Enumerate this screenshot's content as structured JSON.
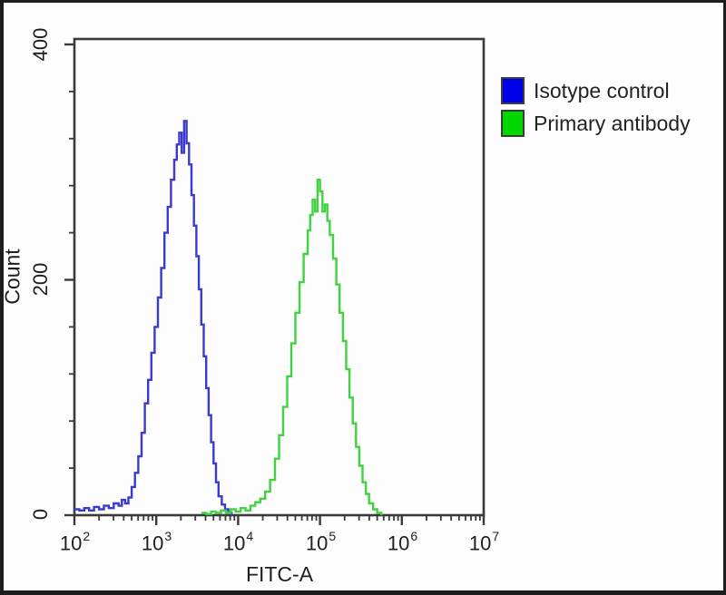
{
  "chart_data": {
    "type": "line",
    "subtype": "flow-cytometry-histogram",
    "title": "",
    "xlabel": "FITC-A",
    "ylabel": "Count",
    "x_scale": "log10",
    "xlim_log10": [
      2,
      7
    ],
    "ylim": [
      0,
      400
    ],
    "grid": false,
    "legend_position": "outside-top-right",
    "x_tick_base": "10",
    "x_tick_exponents": [
      "2",
      "3",
      "4",
      "5",
      "6",
      "7"
    ],
    "y_tick_labels": [
      "0",
      "200",
      "400"
    ],
    "y_tick_values": [
      0,
      200,
      400
    ],
    "y_minor_step": 40,
    "series": [
      {
        "name": "Isotype control",
        "color": "#3a3ad0",
        "peak_x_log10": 3.33,
        "peak_count": 335,
        "points_log10_count": [
          [
            2.0,
            5
          ],
          [
            2.06,
            4
          ],
          [
            2.12,
            6
          ],
          [
            2.18,
            4
          ],
          [
            2.24,
            7
          ],
          [
            2.3,
            5
          ],
          [
            2.36,
            8
          ],
          [
            2.42,
            6
          ],
          [
            2.48,
            10
          ],
          [
            2.54,
            8
          ],
          [
            2.58,
            13
          ],
          [
            2.62,
            10
          ],
          [
            2.66,
            15
          ],
          [
            2.7,
            24
          ],
          [
            2.74,
            36
          ],
          [
            2.78,
            50
          ],
          [
            2.82,
            70
          ],
          [
            2.86,
            95
          ],
          [
            2.9,
            115
          ],
          [
            2.94,
            138
          ],
          [
            2.98,
            160
          ],
          [
            3.02,
            185
          ],
          [
            3.06,
            210
          ],
          [
            3.1,
            240
          ],
          [
            3.14,
            262
          ],
          [
            3.18,
            285
          ],
          [
            3.22,
            302
          ],
          [
            3.25,
            315
          ],
          [
            3.28,
            325
          ],
          [
            3.31,
            308
          ],
          [
            3.34,
            335
          ],
          [
            3.37,
            316
          ],
          [
            3.4,
            298
          ],
          [
            3.43,
            272
          ],
          [
            3.46,
            246
          ],
          [
            3.49,
            220
          ],
          [
            3.52,
            192
          ],
          [
            3.55,
            162
          ],
          [
            3.58,
            135
          ],
          [
            3.61,
            108
          ],
          [
            3.64,
            85
          ],
          [
            3.67,
            62
          ],
          [
            3.7,
            44
          ],
          [
            3.73,
            28
          ],
          [
            3.76,
            16
          ],
          [
            3.8,
            9
          ],
          [
            3.84,
            5
          ],
          [
            3.88,
            2
          ],
          [
            3.92,
            0
          ]
        ]
      },
      {
        "name": "Primary antibody",
        "color": "#3fd43f",
        "peak_x_log10": 4.97,
        "peak_count": 285,
        "points_log10_count": [
          [
            3.55,
            2
          ],
          [
            3.61,
            1
          ],
          [
            3.67,
            3
          ],
          [
            3.73,
            2
          ],
          [
            3.79,
            4
          ],
          [
            3.85,
            2
          ],
          [
            3.91,
            5
          ],
          [
            3.97,
            3
          ],
          [
            4.03,
            6
          ],
          [
            4.09,
            4
          ],
          [
            4.15,
            8
          ],
          [
            4.21,
            11
          ],
          [
            4.27,
            14
          ],
          [
            4.33,
            20
          ],
          [
            4.39,
            30
          ],
          [
            4.45,
            48
          ],
          [
            4.5,
            68
          ],
          [
            4.55,
            92
          ],
          [
            4.6,
            118
          ],
          [
            4.65,
            146
          ],
          [
            4.7,
            172
          ],
          [
            4.75,
            198
          ],
          [
            4.8,
            222
          ],
          [
            4.85,
            242
          ],
          [
            4.88,
            255
          ],
          [
            4.91,
            268
          ],
          [
            4.94,
            258
          ],
          [
            4.97,
            285
          ],
          [
            5.0,
            275
          ],
          [
            5.03,
            258
          ],
          [
            5.06,
            264
          ],
          [
            5.09,
            250
          ],
          [
            5.12,
            238
          ],
          [
            5.16,
            218
          ],
          [
            5.2,
            196
          ],
          [
            5.24,
            172
          ],
          [
            5.28,
            148
          ],
          [
            5.32,
            124
          ],
          [
            5.36,
            100
          ],
          [
            5.4,
            78
          ],
          [
            5.44,
            58
          ],
          [
            5.48,
            42
          ],
          [
            5.52,
            28
          ],
          [
            5.56,
            18
          ],
          [
            5.6,
            10
          ],
          [
            5.65,
            5
          ],
          [
            5.7,
            2
          ],
          [
            5.75,
            0
          ]
        ]
      }
    ]
  },
  "legend": {
    "items": [
      {
        "label": "Isotype control",
        "swatch_color": "#0000e8"
      },
      {
        "label": "Primary antibody",
        "swatch_color": "#00d800"
      }
    ]
  }
}
